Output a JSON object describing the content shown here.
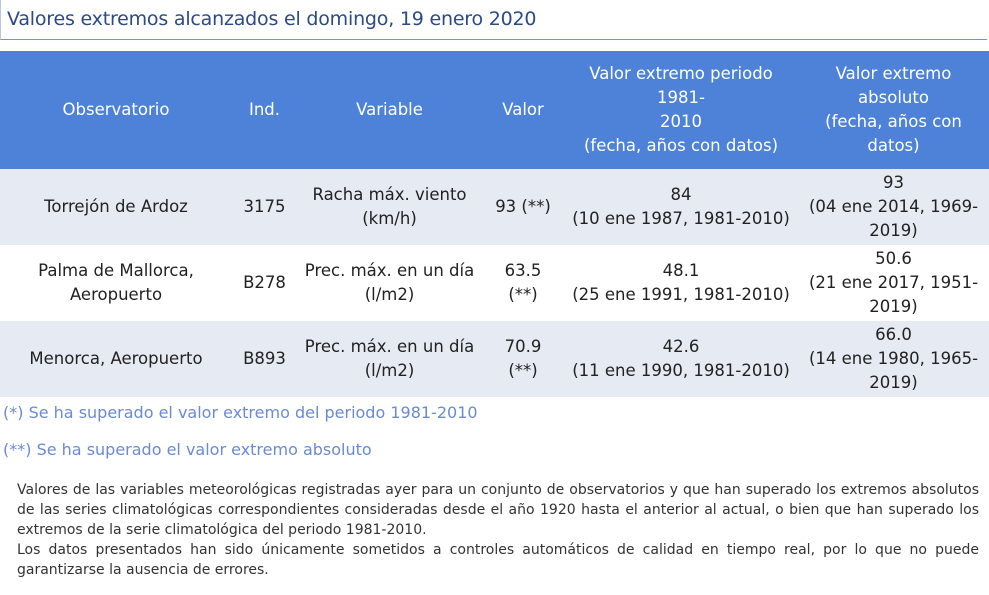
{
  "title": "Valores extremos alcanzados el domingo, 19 enero 2020",
  "table": {
    "headers": [
      "Observatorio",
      "Ind.",
      "Variable",
      "Valor",
      "Valor extremo periodo 1981-\n2010\n(fecha, años con datos)",
      "Valor extremo\nabsoluto\n(fecha, años con\ndatos)"
    ],
    "rows": [
      {
        "observatorio": "Torrejón de Ardoz",
        "ind": "3175",
        "variable": "Racha máx. viento\n(km/h)",
        "valor": "93 (**)",
        "periodo": "84\n(10 ene 1987, 1981-2010)",
        "absoluto": "93\n(04 ene 2014, 1969-\n2019)"
      },
      {
        "observatorio": "Palma de Mallorca,\nAeropuerto",
        "ind": "B278",
        "variable": "Prec. máx. en un día\n(l/m2)",
        "valor": "63.5\n(**)",
        "periodo": "48.1\n(25 ene 1991, 1981-2010)",
        "absoluto": "50.6\n(21 ene 2017, 1951-\n2019)"
      },
      {
        "observatorio": "Menorca, Aeropuerto",
        "ind": "B893",
        "variable": "Prec. máx. en un día\n(l/m2)",
        "valor": "70.9\n(**)",
        "periodo": "42.6\n(11 ene 1990, 1981-2010)",
        "absoluto": "66.0\n(14 ene 1980, 1965-\n2019)"
      }
    ]
  },
  "notes": {
    "single": "(*) Se ha superado el valor extremo del periodo 1981-2010",
    "double": "(**) Se ha superado el valor extremo absoluto"
  },
  "description": {
    "p1": "Valores de las variables meteorológicas registradas ayer para un conjunto de observatorios y que han superado los extremos absolutos de las series climatológicas correspondientes consideradas desde el año 1920 hasta el anterior al actual, o bien que han superado los extremos de la serie climatológica del periodo 1981-2010.",
    "p2": "Los datos presentados han sido únicamente sometidos a controles automáticos de calidad en tiempo real, por lo que no puede garantizarse la ausencia de errores."
  },
  "colors": {
    "title_text": "#2b4a86",
    "header_bg": "#4e82d9",
    "stripe_bg": "#e5eaf3",
    "note_text": "#6a8ad3"
  }
}
